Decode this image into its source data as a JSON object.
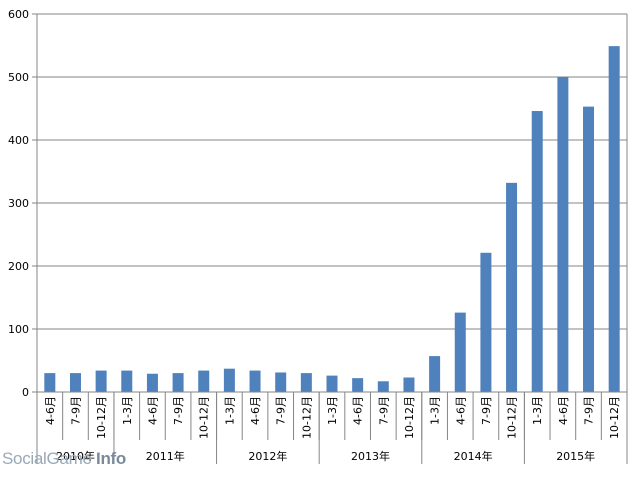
{
  "chart_data": {
    "type": "bar",
    "categories": [
      "4-6月",
      "7-9月",
      "10-12月",
      "1-3月",
      "4-6月",
      "7-9月",
      "10-12月",
      "1-3月",
      "4-6月",
      "7-9月",
      "10-12月",
      "1-3月",
      "4-6月",
      "7-9月",
      "10-12月",
      "1-3月",
      "4-6月",
      "7-9月",
      "10-12月",
      "1-3月",
      "4-6月",
      "7-9月",
      "10-12月"
    ],
    "groups": [
      {
        "label": "2010年",
        "count": 3
      },
      {
        "label": "2011年",
        "count": 4
      },
      {
        "label": "2012年",
        "count": 4
      },
      {
        "label": "2013年",
        "count": 4
      },
      {
        "label": "2014年",
        "count": 4
      },
      {
        "label": "2015年",
        "count": 4
      }
    ],
    "values": [
      30,
      30,
      34,
      34,
      29,
      30,
      34,
      37,
      34,
      31,
      30,
      26,
      22,
      17,
      23,
      57,
      126,
      221,
      332,
      446,
      500,
      453,
      549
    ],
    "ylim": [
      0,
      600
    ],
    "yticks": [
      0,
      100,
      200,
      300,
      400,
      500,
      600
    ],
    "grid": true,
    "bar_color": "#4f81bd",
    "title": "",
    "xlabel": "",
    "ylabel": ""
  },
  "watermark": {
    "text_a": "SocialGame ",
    "text_b": "Info"
  }
}
